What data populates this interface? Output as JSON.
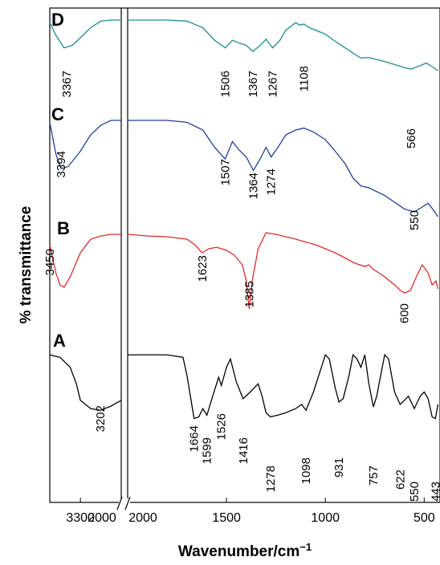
{
  "chart_data": {
    "type": "line",
    "ylabel": "% transmittance",
    "xlabel": "Wavenumber/cm",
    "xlabel_superscript": "−1",
    "x_ticks": [
      "3300",
      "2000",
      "2000",
      "1500",
      "1000",
      "500"
    ],
    "x_break": {
      "left_panel": [
        3450,
        3100
      ],
      "right_panel": [
        2000,
        420
      ]
    },
    "grid": false,
    "series": [
      {
        "name": "D",
        "color": "#1a9089",
        "peak_labels": [
          {
            "text": "3367",
            "x": 3367
          },
          {
            "text": "1506",
            "x": 1506
          },
          {
            "text": "1367",
            "x": 1367
          },
          {
            "text": "1267",
            "x": 1267
          },
          {
            "text": "1108",
            "x": 1108
          },
          {
            "text": "566",
            "x": 566
          }
        ],
        "points": [
          [
            3450,
            0.95
          ],
          [
            3420,
            0.7
          ],
          [
            3380,
            0.45
          ],
          [
            3340,
            0.5
          ],
          [
            3300,
            0.65
          ],
          [
            3250,
            0.85
          ],
          [
            3200,
            0.98
          ],
          [
            3150,
            1.0
          ],
          [
            3100,
            1.0
          ],
          [
            2000,
            1.0
          ],
          [
            1800,
            1.0
          ],
          [
            1700,
            0.98
          ],
          [
            1620,
            0.85
          ],
          [
            1560,
            0.6
          ],
          [
            1506,
            0.45
          ],
          [
            1470,
            0.6
          ],
          [
            1440,
            0.55
          ],
          [
            1400,
            0.5
          ],
          [
            1367,
            0.38
          ],
          [
            1330,
            0.5
          ],
          [
            1300,
            0.62
          ],
          [
            1267,
            0.45
          ],
          [
            1230,
            0.6
          ],
          [
            1200,
            0.8
          ],
          [
            1150,
            0.95
          ],
          [
            1130,
            0.9
          ],
          [
            1108,
            0.92
          ],
          [
            1080,
            0.85
          ],
          [
            1000,
            0.72
          ],
          [
            950,
            0.58
          ],
          [
            900,
            0.45
          ],
          [
            850,
            0.32
          ],
          [
            820,
            0.25
          ],
          [
            780,
            0.26
          ],
          [
            700,
            0.18
          ],
          [
            650,
            0.12
          ],
          [
            600,
            0.06
          ],
          [
            566,
            0.03
          ],
          [
            520,
            0.1
          ],
          [
            490,
            0.15
          ],
          [
            460,
            0.08
          ],
          [
            430,
            0.0
          ]
        ]
      },
      {
        "name": "C",
        "color": "#223d9a",
        "peak_labels": [
          {
            "text": "3394",
            "x": 3394
          },
          {
            "text": "1507",
            "x": 1507
          },
          {
            "text": "1364",
            "x": 1364
          },
          {
            "text": "1274",
            "x": 1274
          },
          {
            "text": "550",
            "x": 550
          }
        ],
        "points": [
          [
            3450,
            0.98
          ],
          [
            3420,
            0.65
          ],
          [
            3394,
            0.5
          ],
          [
            3360,
            0.52
          ],
          [
            3300,
            0.68
          ],
          [
            3250,
            0.85
          ],
          [
            3200,
            0.95
          ],
          [
            3150,
            1.0
          ],
          [
            3100,
            1.0
          ],
          [
            2000,
            1.0
          ],
          [
            1800,
            1.0
          ],
          [
            1700,
            0.98
          ],
          [
            1620,
            0.9
          ],
          [
            1560,
            0.72
          ],
          [
            1507,
            0.6
          ],
          [
            1470,
            0.78
          ],
          [
            1440,
            0.7
          ],
          [
            1400,
            0.62
          ],
          [
            1364,
            0.48
          ],
          [
            1330,
            0.6
          ],
          [
            1300,
            0.72
          ],
          [
            1274,
            0.62
          ],
          [
            1240,
            0.72
          ],
          [
            1200,
            0.85
          ],
          [
            1150,
            0.9
          ],
          [
            1108,
            0.92
          ],
          [
            1060,
            0.88
          ],
          [
            1000,
            0.8
          ],
          [
            950,
            0.68
          ],
          [
            900,
            0.55
          ],
          [
            860,
            0.4
          ],
          [
            820,
            0.32
          ],
          [
            780,
            0.3
          ],
          [
            700,
            0.22
          ],
          [
            650,
            0.15
          ],
          [
            600,
            0.08
          ],
          [
            550,
            0.05
          ],
          [
            510,
            0.1
          ],
          [
            480,
            0.14
          ],
          [
            450,
            0.06
          ],
          [
            430,
            0.0
          ]
        ]
      },
      {
        "name": "B",
        "color": "#e02a2a",
        "peak_labels": [
          {
            "text": "3450",
            "x": 3450
          },
          {
            "text": "1623",
            "x": 1623
          },
          {
            "text": "1385",
            "x": 1385
          },
          {
            "text": "600",
            "x": 600
          }
        ],
        "points": [
          [
            3450,
            0.85
          ],
          [
            3420,
            0.5
          ],
          [
            3400,
            0.35
          ],
          [
            3380,
            0.32
          ],
          [
            3350,
            0.45
          ],
          [
            3300,
            0.75
          ],
          [
            3250,
            0.92
          ],
          [
            3200,
            0.96
          ],
          [
            3150,
            0.98
          ],
          [
            3100,
            0.98
          ],
          [
            2000,
            0.98
          ],
          [
            1900,
            0.96
          ],
          [
            1800,
            0.95
          ],
          [
            1700,
            0.92
          ],
          [
            1660,
            0.85
          ],
          [
            1623,
            0.75
          ],
          [
            1590,
            0.8
          ],
          [
            1550,
            0.82
          ],
          [
            1500,
            0.78
          ],
          [
            1460,
            0.72
          ],
          [
            1420,
            0.6
          ],
          [
            1400,
            0.4
          ],
          [
            1385,
            0.05
          ],
          [
            1370,
            0.4
          ],
          [
            1340,
            0.8
          ],
          [
            1300,
            1.0
          ],
          [
            1250,
            0.98
          ],
          [
            1150,
            0.92
          ],
          [
            1050,
            0.85
          ],
          [
            950,
            0.75
          ],
          [
            850,
            0.62
          ],
          [
            800,
            0.58
          ],
          [
            780,
            0.6
          ],
          [
            760,
            0.55
          ],
          [
            700,
            0.45
          ],
          [
            650,
            0.35
          ],
          [
            620,
            0.28
          ],
          [
            600,
            0.25
          ],
          [
            570,
            0.28
          ],
          [
            540,
            0.45
          ],
          [
            510,
            0.6
          ],
          [
            480,
            0.5
          ],
          [
            460,
            0.35
          ],
          [
            440,
            0.4
          ],
          [
            430,
            0.3
          ]
        ]
      },
      {
        "name": "A",
        "color": "#000000",
        "peak_labels": [
          {
            "text": "3202",
            "x": 3202
          },
          {
            "text": "1664",
            "x": 1664
          },
          {
            "text": "1599",
            "x": 1599
          },
          {
            "text": "1526",
            "x": 1526
          },
          {
            "text": "1416",
            "x": 1416
          },
          {
            "text": "1278",
            "x": 1278
          },
          {
            "text": "1098",
            "x": 1098
          },
          {
            "text": "931",
            "x": 931
          },
          {
            "text": "757",
            "x": 757
          },
          {
            "text": "622",
            "x": 622
          },
          {
            "text": "550",
            "x": 550
          },
          {
            "text": "443",
            "x": 443
          }
        ],
        "points": [
          [
            3450,
            0.95
          ],
          [
            3400,
            0.92
          ],
          [
            3350,
            0.8
          ],
          [
            3320,
            0.6
          ],
          [
            3300,
            0.4
          ],
          [
            3250,
            0.3
          ],
          [
            3202,
            0.28
          ],
          [
            3150,
            0.33
          ],
          [
            3100,
            0.4
          ],
          [
            2000,
            0.95
          ],
          [
            1900,
            0.95
          ],
          [
            1800,
            0.95
          ],
          [
            1720,
            0.92
          ],
          [
            1700,
            0.7
          ],
          [
            1664,
            0.18
          ],
          [
            1640,
            0.2
          ],
          [
            1620,
            0.3
          ],
          [
            1599,
            0.22
          ],
          [
            1570,
            0.45
          ],
          [
            1540,
            0.68
          ],
          [
            1526,
            0.58
          ],
          [
            1500,
            0.8
          ],
          [
            1480,
            0.9
          ],
          [
            1450,
            0.62
          ],
          [
            1416,
            0.42
          ],
          [
            1380,
            0.5
          ],
          [
            1340,
            0.6
          ],
          [
            1320,
            0.45
          ],
          [
            1300,
            0.25
          ],
          [
            1278,
            0.2
          ],
          [
            1240,
            0.22
          ],
          [
            1200,
            0.25
          ],
          [
            1150,
            0.3
          ],
          [
            1120,
            0.35
          ],
          [
            1098,
            0.28
          ],
          [
            1060,
            0.5
          ],
          [
            1020,
            0.8
          ],
          [
            1000,
            0.95
          ],
          [
            980,
            0.9
          ],
          [
            950,
            0.55
          ],
          [
            931,
            0.38
          ],
          [
            910,
            0.42
          ],
          [
            880,
            0.7
          ],
          [
            860,
            0.95
          ],
          [
            840,
            0.9
          ],
          [
            820,
            0.8
          ],
          [
            800,
            0.95
          ],
          [
            780,
            0.6
          ],
          [
            757,
            0.32
          ],
          [
            740,
            0.45
          ],
          [
            720,
            0.7
          ],
          [
            700,
            0.95
          ],
          [
            680,
            0.9
          ],
          [
            650,
            0.5
          ],
          [
            622,
            0.35
          ],
          [
            600,
            0.4
          ],
          [
            580,
            0.45
          ],
          [
            550,
            0.3
          ],
          [
            520,
            0.45
          ],
          [
            500,
            0.5
          ],
          [
            480,
            0.42
          ],
          [
            460,
            0.2
          ],
          [
            443,
            0.18
          ],
          [
            430,
            0.35
          ]
        ]
      }
    ]
  }
}
